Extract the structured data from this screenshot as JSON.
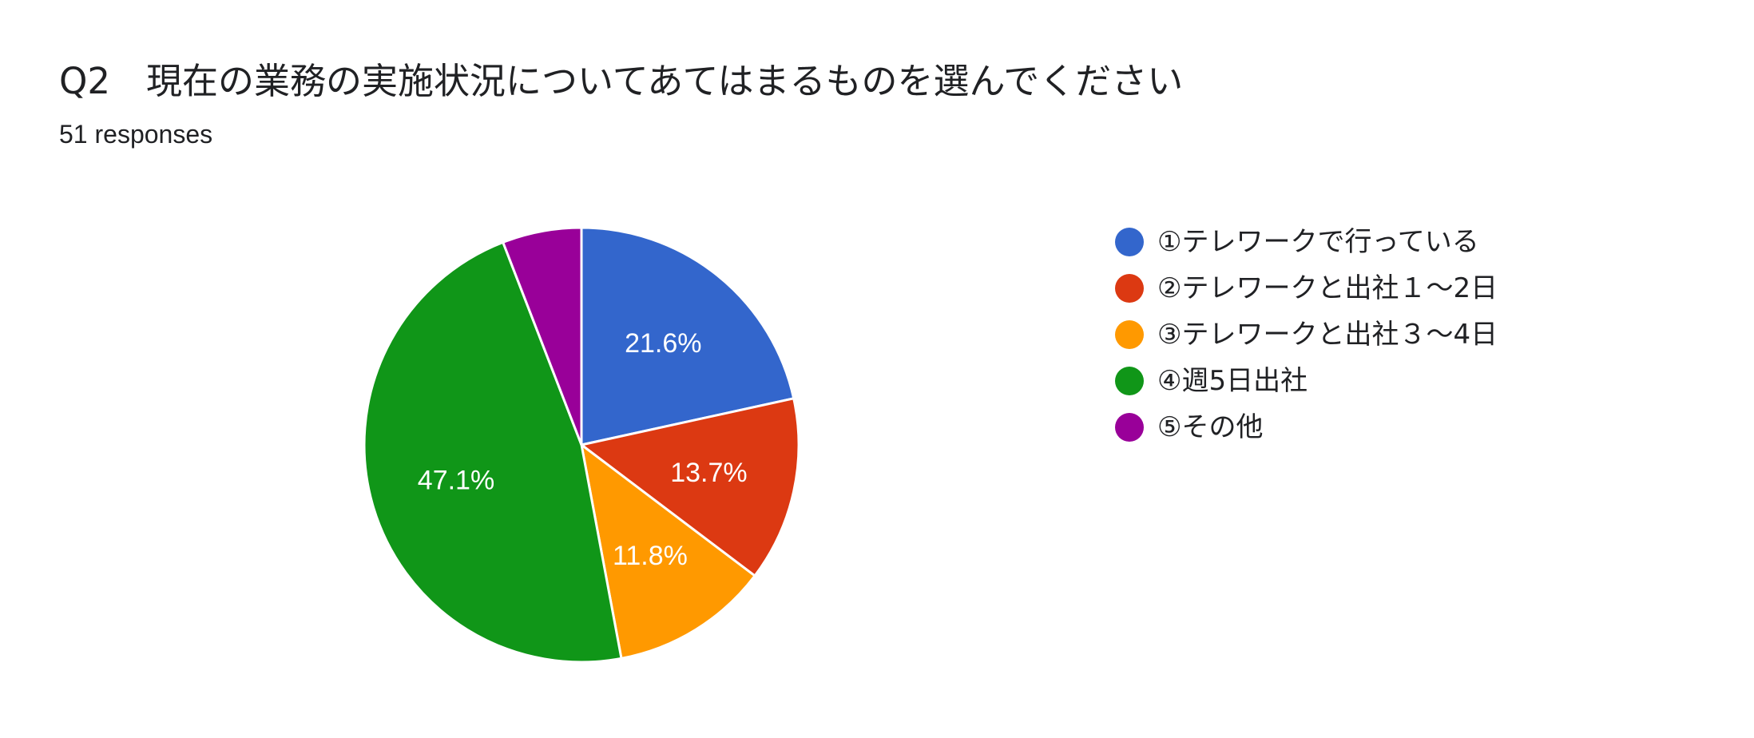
{
  "header": {
    "title": "Q2　現在の業務の実施状況についてあてはまるものを選んでください",
    "responses": "51 responses"
  },
  "chart_data": {
    "type": "pie",
    "title": "Q2　現在の業務の実施状況についてあてはまるものを選んでください",
    "subtitle": "51 responses",
    "start_angle_deg": 90,
    "direction": "clockwise",
    "legend_position": "right",
    "slices": [
      {
        "label": "①テレワークで行っている",
        "value": 11,
        "percent": 21.6,
        "percent_label": "21.6%",
        "color": "#3366cc"
      },
      {
        "label": "②テレワークと出社１～2日",
        "value": 7,
        "percent": 13.7,
        "percent_label": "13.7%",
        "color": "#dc3912"
      },
      {
        "label": "③テレワークと出社３～4日",
        "value": 6,
        "percent": 11.8,
        "percent_label": "11.8%",
        "color": "#ff9900"
      },
      {
        "label": "④週5日出社",
        "value": 24,
        "percent": 47.1,
        "percent_label": "47.1%",
        "color": "#109618"
      },
      {
        "label": "⑤その他",
        "value": 3,
        "percent": 5.9,
        "percent_label": "",
        "color": "#990099"
      }
    ]
  }
}
